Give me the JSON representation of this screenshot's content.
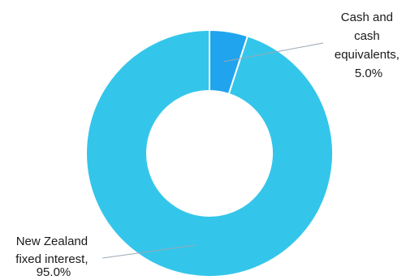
{
  "chart_data": {
    "type": "pie",
    "donut": true,
    "categories": [
      "Cash and cash equivalents",
      "New Zealand fixed interest"
    ],
    "values": [
      5.0,
      95.0
    ],
    "colors": [
      "#20a4ee",
      "#34c6ea"
    ],
    "labels": [
      {
        "lines": [
          "Cash and",
          "cash",
          "equivalents,",
          "5.0%"
        ]
      },
      {
        "lines": [
          "New Zealand",
          "fixed interest,",
          "95.0%"
        ]
      }
    ],
    "legend": "none"
  }
}
